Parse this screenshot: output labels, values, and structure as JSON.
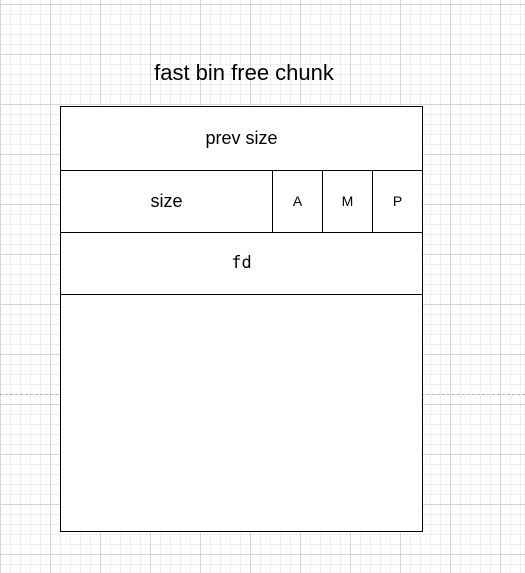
{
  "title": "fast bin free chunk",
  "chunk": {
    "prev_size": "prev size",
    "size": "size",
    "flags": [
      "A",
      "M",
      "P"
    ],
    "fd": "fd"
  }
}
